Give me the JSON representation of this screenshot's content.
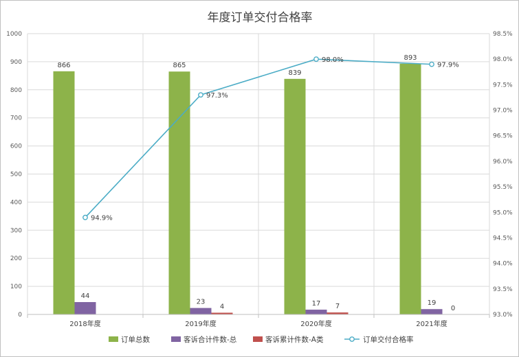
{
  "chart_data": {
    "type": "bar",
    "title": "年度订单交付合格率",
    "categories": [
      "2018年度",
      "2019年度",
      "2020年度",
      "2021年度"
    ],
    "ylim": [
      0,
      1000
    ],
    "y_ticks": [
      "0",
      "100",
      "200",
      "300",
      "400",
      "500",
      "600",
      "700",
      "800",
      "900",
      "1000"
    ],
    "y2lim": [
      93.0,
      98.5
    ],
    "y2_ticks": [
      "93.0%",
      "93.5%",
      "94.0%",
      "94.5%",
      "95.0%",
      "95.5%",
      "96.0%",
      "96.5%",
      "97.0%",
      "97.5%",
      "98.0%",
      "98.5%"
    ],
    "grid": true,
    "legend_position": "bottom",
    "series": [
      {
        "name": "订单总数",
        "kind": "bar",
        "axis": "left",
        "color": "#8db34a",
        "values": [
          866,
          865,
          839,
          893
        ],
        "labels": [
          "866",
          "865",
          "839",
          "893"
        ]
      },
      {
        "name": "客诉合计件数-总",
        "kind": "bar",
        "axis": "left",
        "color": "#8064a2",
        "values": [
          44,
          23,
          17,
          19
        ],
        "labels": [
          "44",
          "23",
          "17",
          "19"
        ]
      },
      {
        "name": "客诉累计件数-A类",
        "kind": "bar",
        "axis": "left",
        "color": "#c0504d",
        "values": [
          0,
          4,
          7,
          0
        ],
        "labels": [
          "",
          "4",
          "7",
          "0"
        ]
      },
      {
        "name": "订单交付合格率",
        "kind": "line",
        "axis": "right",
        "color": "#4bacc6",
        "values": [
          94.9,
          97.3,
          98.0,
          97.9
        ],
        "labels": [
          "94.9%",
          "97.3%",
          "98.0%",
          "97.9%"
        ]
      }
    ]
  }
}
